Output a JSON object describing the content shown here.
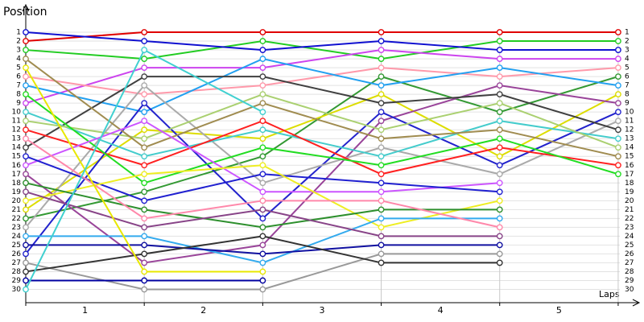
{
  "chart_data": {
    "type": "line",
    "title": "Position",
    "x_label": "Laps",
    "x": [
      0,
      1,
      2,
      3,
      4,
      5
    ],
    "xlim": [
      0,
      5.15
    ],
    "xticks": [
      {
        "value": 0.5,
        "label": "1"
      },
      {
        "value": 1.5,
        "label": "2"
      },
      {
        "value": 2.5,
        "label": "3"
      },
      {
        "value": 3.5,
        "label": "4"
      },
      {
        "value": 4.5,
        "label": "5"
      }
    ],
    "ylim": [
      31.5,
      -1
    ],
    "yticks": [
      1,
      2,
      3,
      4,
      5,
      6,
      7,
      8,
      9,
      10,
      11,
      12,
      13,
      14,
      15,
      16,
      17,
      18,
      19,
      20,
      21,
      22,
      23,
      24,
      25,
      26,
      27,
      28,
      29,
      30
    ],
    "grid": true,
    "series": [
      {
        "color": "#e00000",
        "values": [
          2,
          1,
          1,
          1,
          1,
          1
        ]
      },
      {
        "color": "#22cc22",
        "values": [
          3,
          4,
          2,
          4,
          2,
          2
        ]
      },
      {
        "color": "#1010d0",
        "values": [
          1,
          2,
          3,
          2,
          3,
          3
        ]
      },
      {
        "color": "#cc44ee",
        "values": [
          9,
          5,
          5,
          3,
          4,
          4
        ]
      },
      {
        "color": "#ff99aa",
        "values": [
          6,
          8,
          7,
          5,
          6,
          5
        ]
      },
      {
        "color": "#339933",
        "values": [
          22,
          19,
          15,
          6,
          10,
          6
        ]
      },
      {
        "color": "#22a0f0",
        "values": [
          7,
          10,
          4,
          7,
          5,
          7
        ]
      },
      {
        "color": "#dddd00",
        "values": [
          21,
          12,
          13,
          8,
          15,
          8
        ]
      },
      {
        "color": "#994499",
        "values": [
          17,
          27,
          25,
          11,
          7,
          9
        ]
      },
      {
        "color": "#2222cc",
        "values": [
          26,
          9,
          22,
          10,
          16,
          10
        ]
      },
      {
        "color": "#aaaaaa",
        "values": [
          23,
          7,
          18,
          14,
          17,
          11
        ]
      },
      {
        "color": "#404040",
        "values": [
          14,
          6,
          6,
          9,
          8,
          12
        ]
      },
      {
        "color": "#44cccc",
        "values": [
          10,
          15,
          12,
          15,
          11,
          13
        ]
      },
      {
        "color": "#aad070",
        "values": [
          11,
          13,
          8,
          12,
          9,
          14
        ]
      },
      {
        "color": "#a08c50",
        "values": [
          4,
          14,
          9,
          13,
          12,
          15
        ]
      },
      {
        "color": "#ff2020",
        "values": [
          12,
          16,
          11,
          17,
          14,
          16
        ]
      },
      {
        "color": "#22dd22",
        "values": [
          8,
          18,
          14,
          16,
          13,
          17
        ]
      },
      {
        "color": "#cc55ff",
        "values": [
          16,
          11,
          19,
          19,
          18,
          null
        ]
      },
      {
        "color": "#2020d0",
        "values": [
          15,
          20,
          17,
          18,
          19,
          null
        ]
      },
      {
        "color": "#eeee22",
        "values": [
          20,
          17,
          16,
          23,
          20,
          null
        ]
      },
      {
        "color": "#2d8f2d",
        "values": [
          18,
          21,
          23,
          21,
          21,
          null
        ]
      },
      {
        "color": "#33aaee",
        "values": [
          24,
          24,
          27,
          22,
          22,
          null
        ]
      },
      {
        "color": "#ff88aa",
        "values": [
          13,
          22,
          20,
          20,
          23,
          null
        ]
      },
      {
        "color": "#884488",
        "values": [
          19,
          23,
          21,
          24,
          24,
          null
        ]
      },
      {
        "color": "#1010a0",
        "values": [
          25,
          25,
          26,
          25,
          25,
          null
        ]
      },
      {
        "color": "#999999",
        "values": [
          27,
          30,
          30,
          26,
          26,
          null
        ]
      },
      {
        "color": "#333333",
        "values": [
          28,
          26,
          24,
          27,
          27,
          null
        ]
      },
      {
        "color": "#e8e800",
        "values": [
          5,
          28,
          28,
          null,
          null,
          null
        ]
      },
      {
        "color": "#0000a0",
        "values": [
          29,
          29,
          29,
          null,
          null,
          null
        ]
      },
      {
        "color": "#40d0d0",
        "values": [
          30,
          3,
          10,
          null,
          null,
          null
        ]
      }
    ]
  }
}
